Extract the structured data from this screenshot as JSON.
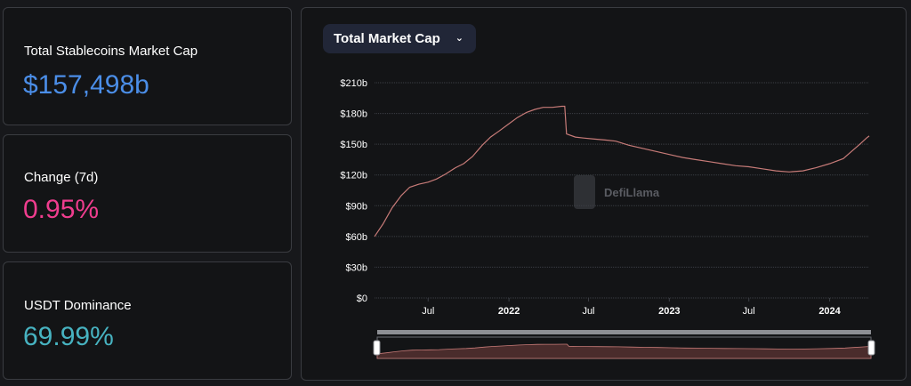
{
  "stats": [
    {
      "label": "Total Stablecoins Market Cap",
      "value": "$157,498b",
      "color": "#4b8ee8"
    },
    {
      "label": "Change (7d)",
      "value": "0.95%",
      "color": "#ef3d8e"
    },
    {
      "label": "USDT Dominance",
      "value": "69.99%",
      "color": "#47b3c1"
    }
  ],
  "chart_panel": {
    "select_label": "Total Market Cap",
    "watermark": "DefiLlama"
  },
  "colors": {
    "line": "#c77b78",
    "grid": "#3b3e44",
    "axis_text": "#ffffff",
    "brush_fill": "#4a2c2c",
    "brush_border": "#6a6c72"
  },
  "chart_data": {
    "type": "line",
    "title": "",
    "xlabel": "",
    "ylabel": "",
    "x_range": [
      "2021-03",
      "2024-03"
    ],
    "ylim": [
      0,
      210
    ],
    "y_ticks": [
      {
        "value": 0,
        "label": "$0"
      },
      {
        "value": 30,
        "label": "$30b"
      },
      {
        "value": 60,
        "label": "$60b"
      },
      {
        "value": 90,
        "label": "$90b"
      },
      {
        "value": 120,
        "label": "$120b"
      },
      {
        "value": 150,
        "label": "$150b"
      },
      {
        "value": 180,
        "label": "$180b"
      },
      {
        "value": 210,
        "label": "$210b"
      }
    ],
    "x_ticks": [
      {
        "value": "2021-07",
        "label": "Jul",
        "bold": false
      },
      {
        "value": "2022-01",
        "label": "2022",
        "bold": true
      },
      {
        "value": "2022-07",
        "label": "Jul",
        "bold": false
      },
      {
        "value": "2023-01",
        "label": "2023",
        "bold": true
      },
      {
        "value": "2023-07",
        "label": "Jul",
        "bold": false
      },
      {
        "value": "2024-01",
        "label": "2024",
        "bold": true
      }
    ],
    "grid": true,
    "series": [
      {
        "points": [
          [
            "2021-03-01",
            60
          ],
          [
            "2021-03-20",
            72
          ],
          [
            "2021-04-10",
            88
          ],
          [
            "2021-05-01",
            100
          ],
          [
            "2021-05-20",
            108
          ],
          [
            "2021-06-10",
            111
          ],
          [
            "2021-07-01",
            113
          ],
          [
            "2021-07-20",
            116
          ],
          [
            "2021-08-10",
            121
          ],
          [
            "2021-09-01",
            127
          ],
          [
            "2021-09-20",
            131
          ],
          [
            "2021-10-10",
            138
          ],
          [
            "2021-11-01",
            149
          ],
          [
            "2021-11-20",
            157
          ],
          [
            "2021-12-10",
            163
          ],
          [
            "2022-01-01",
            170
          ],
          [
            "2022-01-20",
            176
          ],
          [
            "2022-02-10",
            181
          ],
          [
            "2022-03-01",
            184
          ],
          [
            "2022-03-20",
            186
          ],
          [
            "2022-04-10",
            186
          ],
          [
            "2022-05-01",
            187
          ],
          [
            "2022-05-08",
            187
          ],
          [
            "2022-05-12",
            160
          ],
          [
            "2022-06-01",
            157
          ],
          [
            "2022-06-20",
            156
          ],
          [
            "2022-07-15",
            155
          ],
          [
            "2022-08-10",
            154
          ],
          [
            "2022-09-01",
            153
          ],
          [
            "2022-10-01",
            149
          ],
          [
            "2022-11-01",
            146
          ],
          [
            "2022-12-01",
            143
          ],
          [
            "2023-01-01",
            140
          ],
          [
            "2023-02-01",
            137
          ],
          [
            "2023-03-01",
            135
          ],
          [
            "2023-04-01",
            133
          ],
          [
            "2023-05-01",
            131
          ],
          [
            "2023-06-01",
            129
          ],
          [
            "2023-07-01",
            128
          ],
          [
            "2023-08-01",
            126
          ],
          [
            "2023-09-01",
            124
          ],
          [
            "2023-10-01",
            123
          ],
          [
            "2023-11-01",
            124
          ],
          [
            "2023-12-01",
            127
          ],
          [
            "2024-01-01",
            131
          ],
          [
            "2024-02-01",
            136
          ],
          [
            "2024-02-20",
            143
          ],
          [
            "2024-03-10",
            150
          ],
          [
            "2024-03-25",
            156
          ],
          [
            "2024-03-31",
            158
          ]
        ]
      }
    ]
  }
}
